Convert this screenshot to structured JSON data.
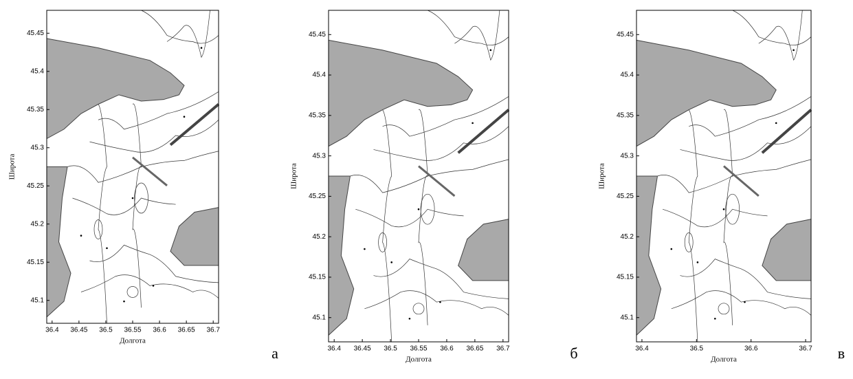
{
  "chart_data": [
    {
      "type": "contour",
      "panel": "а",
      "xlabel": "Долгота",
      "ylabel": "Широта",
      "xlim": [
        36.39,
        36.71
      ],
      "ylim": [
        45.07,
        45.48
      ],
      "xticks": [
        36.4,
        36.45,
        36.5,
        36.55,
        36.6,
        36.65,
        36.7
      ],
      "yticks": [
        45.1,
        45.15,
        45.2,
        45.25,
        45.3,
        45.35,
        45.4,
        45.45
      ]
    },
    {
      "type": "contour",
      "panel": "б",
      "xlabel": "Долгота",
      "ylabel": "Широта",
      "xlim": [
        36.39,
        36.71
      ],
      "ylim": [
        45.07,
        45.48
      ],
      "xticks": [
        36.4,
        36.45,
        36.5,
        36.55,
        36.6,
        36.65,
        36.7
      ],
      "yticks": [
        45.1,
        45.15,
        45.2,
        45.25,
        45.3,
        45.35,
        45.4,
        45.45
      ]
    },
    {
      "type": "contour",
      "panel": "в",
      "xlabel": "Долгота",
      "ylabel": "Широта",
      "xlim": [
        36.39,
        36.71
      ],
      "ylim": [
        45.07,
        45.48
      ],
      "xticks": [
        36.4,
        36.5,
        36.6,
        36.7
      ],
      "yticks": [
        45.1,
        45.15,
        45.2,
        45.25,
        45.3,
        45.35,
        45.4,
        45.45
      ]
    }
  ]
}
